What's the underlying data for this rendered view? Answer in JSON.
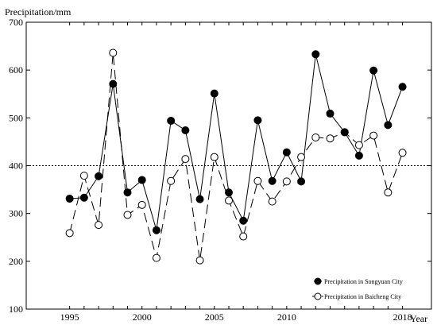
{
  "chart_data": {
    "type": "line",
    "ylabel": "Precipitation/mm",
    "xlabel": "Year",
    "xlim": [
      1992,
      2020
    ],
    "ylim": [
      100,
      700
    ],
    "y_ticks": [
      "100",
      "200",
      "300",
      "400",
      "500",
      "600",
      "700"
    ],
    "x_ticks": [
      {
        "value": 1995,
        "label": "1995"
      },
      {
        "value": 2000,
        "label": "2000"
      },
      {
        "value": 2005,
        "label": "2005"
      },
      {
        "value": 2010,
        "label": "2010"
      },
      {
        "value": 2018,
        "label": "2018"
      }
    ],
    "reference_line": {
      "y": 400,
      "style": "dotted"
    },
    "x": [
      1995,
      1996,
      1997,
      1998,
      1999,
      2000,
      2001,
      2002,
      2003,
      2004,
      2005,
      2006,
      2007,
      2008,
      2009,
      2010,
      2011,
      2012,
      2013,
      2014,
      2015,
      2016,
      2017,
      2018
    ],
    "series": [
      {
        "name": "Precipitation in Songyuan City",
        "marker": "filled-circle",
        "line": "solid",
        "color": "#000000",
        "values": [
          331,
          333,
          378,
          571,
          344,
          370,
          265,
          494,
          474,
          330,
          551,
          344,
          285,
          495,
          368,
          428,
          367,
          633,
          509,
          470,
          421,
          599,
          485,
          565
        ]
      },
      {
        "name": "Precipitation in Baicheng City",
        "marker": "open-circle",
        "line": "dashed",
        "color": "#000000",
        "values": [
          259,
          379,
          276,
          636,
          297,
          318,
          207,
          368,
          414,
          202,
          418,
          327,
          252,
          368,
          325,
          367,
          418,
          459,
          457,
          470,
          443,
          463,
          344,
          427
        ]
      }
    ],
    "legend": {
      "position": "bottom-right"
    }
  }
}
